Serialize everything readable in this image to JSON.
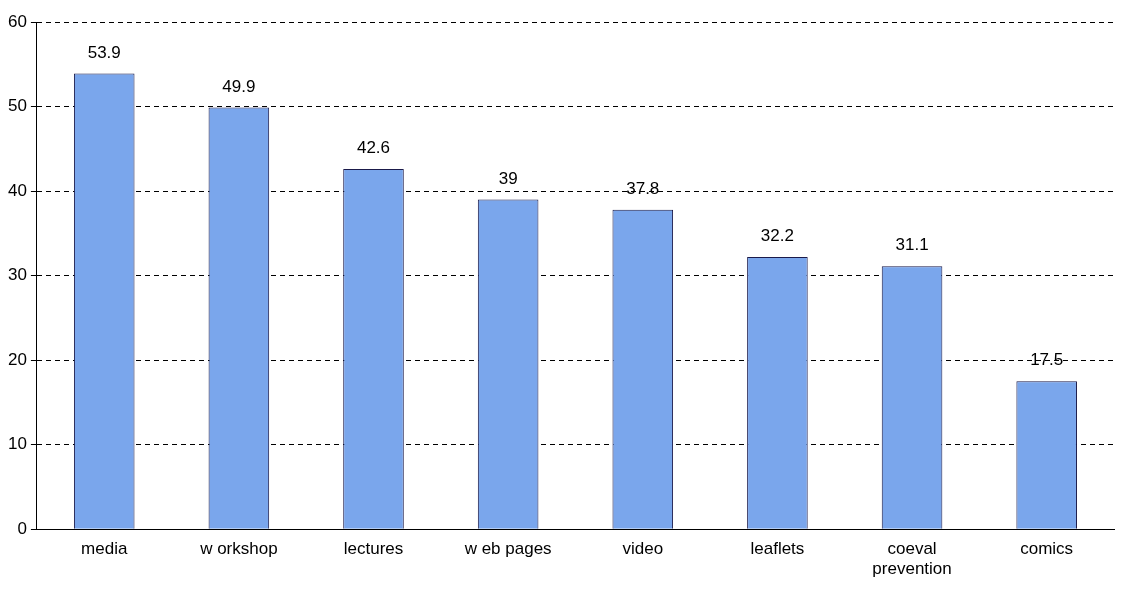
{
  "chart_data": {
    "type": "bar",
    "categories": [
      "media",
      "w orkshop",
      "lectures",
      "w eb pages",
      "video",
      "leaflets",
      "coeval prevention",
      "comics"
    ],
    "values": [
      53.9,
      49.9,
      42.6,
      39,
      37.8,
      32.2,
      31.1,
      17.5
    ],
    "color": "#7aa6ec",
    "ylim": [
      0,
      60
    ],
    "yticks": [
      0,
      10,
      20,
      30,
      40,
      50,
      60
    ],
    "grid": "y",
    "data_labels": true
  }
}
